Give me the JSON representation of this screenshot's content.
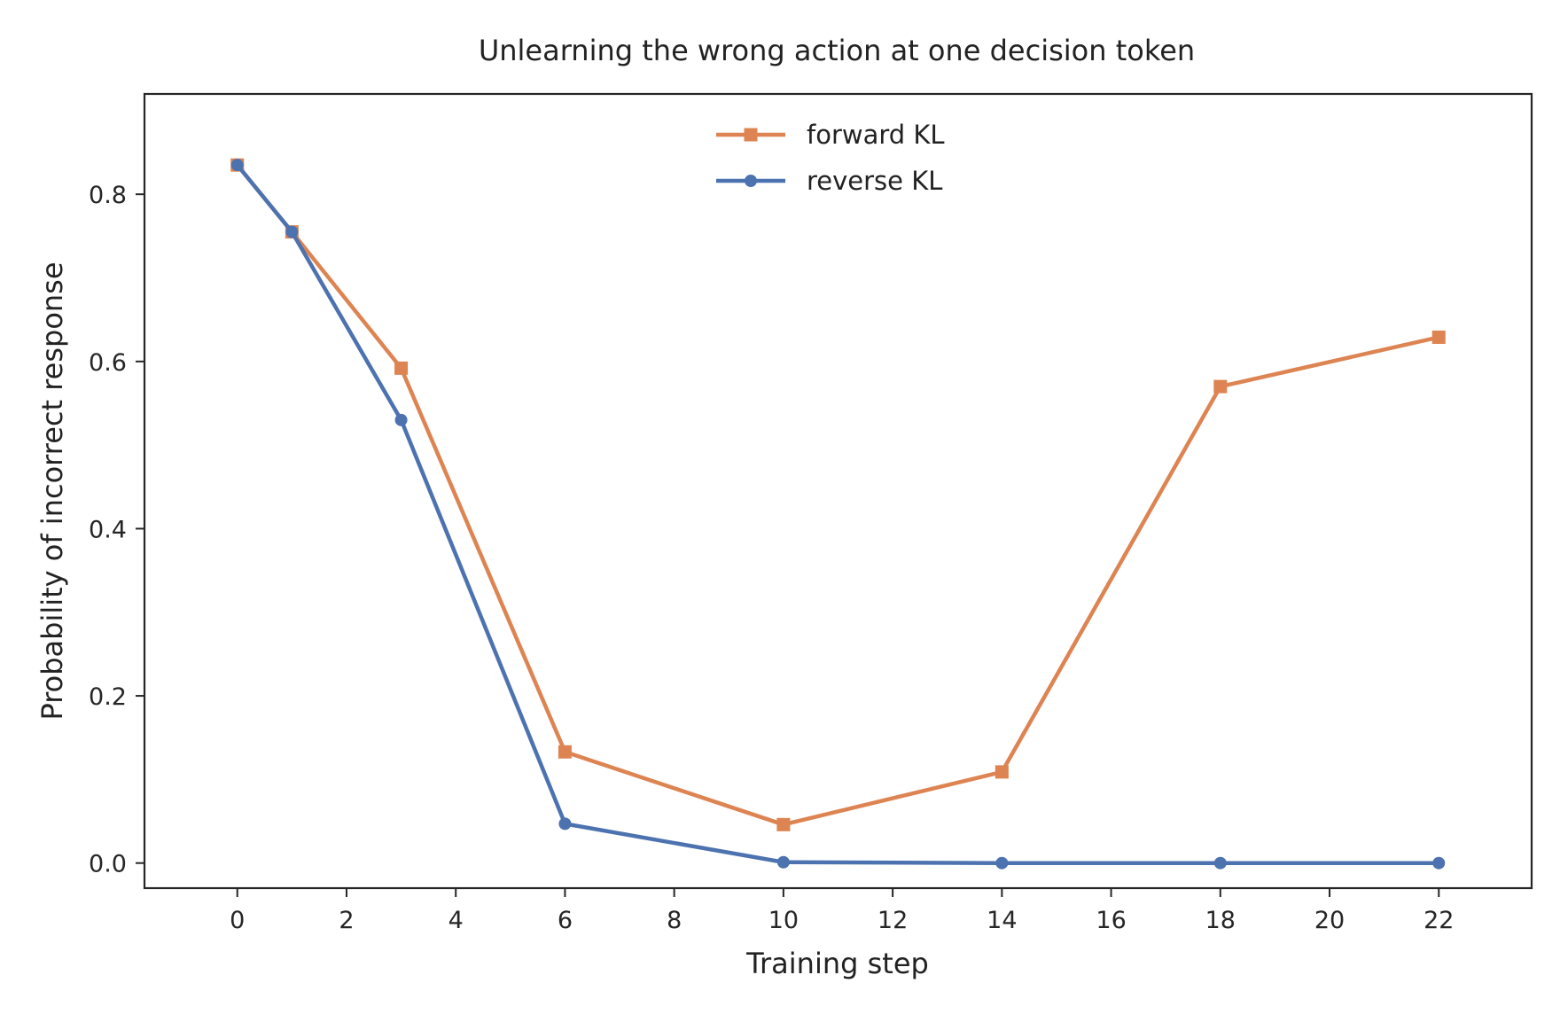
{
  "chart_data": {
    "type": "line",
    "title": "Unlearning the wrong action at one decision token",
    "xlabel": "Training step",
    "ylabel": "Probability of incorrect response",
    "xlim": [
      -1.7,
      23.7
    ],
    "ylim": [
      -0.03,
      0.92
    ],
    "xticks": [
      0,
      2,
      4,
      6,
      8,
      10,
      12,
      14,
      16,
      18,
      20,
      22
    ],
    "yticks": [
      0.0,
      0.2,
      0.4,
      0.6,
      0.8
    ],
    "grid": false,
    "legend_position": "top-center",
    "series": [
      {
        "name": "forward KL",
        "color": "#dd8452",
        "marker": "square",
        "x": [
          0,
          1,
          3,
          6,
          10,
          14,
          18,
          22
        ],
        "y": [
          0.835,
          0.755,
          0.592,
          0.133,
          0.046,
          0.109,
          0.57,
          0.629
        ]
      },
      {
        "name": "reverse KL",
        "color": "#4c72b0",
        "marker": "circle",
        "x": [
          0,
          1,
          3,
          6,
          10,
          14,
          18,
          22
        ],
        "y": [
          0.835,
          0.755,
          0.53,
          0.047,
          0.001,
          0.0,
          0.0,
          0.0
        ]
      }
    ]
  }
}
